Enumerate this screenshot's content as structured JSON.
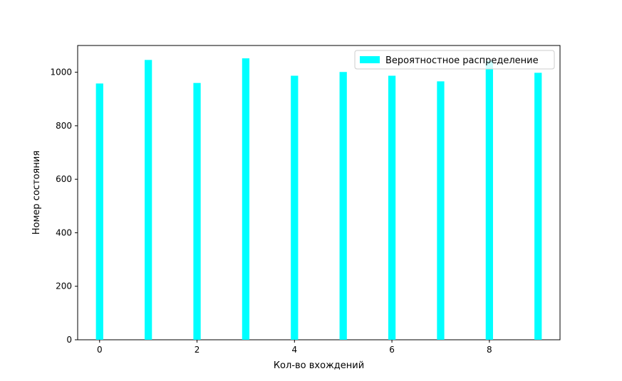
{
  "chart_data": {
    "type": "bar",
    "title": "",
    "xlabel": "Кол-во вхождений",
    "ylabel": "Номер состояния",
    "x": [
      0,
      1,
      2,
      3,
      4,
      5,
      6,
      7,
      8,
      9
    ],
    "series": [
      {
        "name": "Вероятностное распределение",
        "color": "#00ffff",
        "values": [
          958,
          1046,
          960,
          1052,
          987,
          1001,
          987,
          966,
          1043,
          998
        ]
      }
    ],
    "xlim": [
      -0.45,
      9.45
    ],
    "ylim": [
      0,
      1100
    ],
    "xticks": [
      0,
      2,
      4,
      6,
      8
    ],
    "yticks": [
      0,
      200,
      400,
      600,
      800,
      1000
    ],
    "xtick_labels": [
      "0",
      "2",
      "4",
      "6",
      "8"
    ],
    "ytick_labels": [
      "0",
      "200",
      "400",
      "600",
      "800",
      "1000"
    ],
    "bar_width": 0.15,
    "grid": false,
    "legend_position": "upper right"
  }
}
